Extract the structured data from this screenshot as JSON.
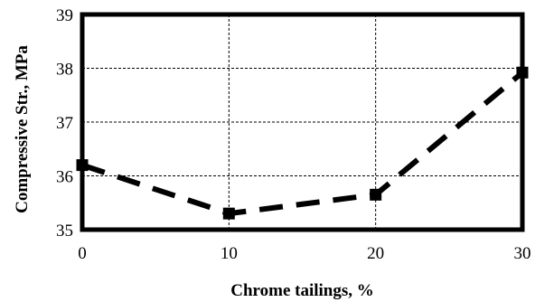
{
  "chart_data": {
    "type": "line",
    "title": "",
    "xlabel": "Chrome tailings, %",
    "ylabel": "Compressive Str., MPa",
    "x": [
      0,
      10,
      20,
      30
    ],
    "series": [
      {
        "values": [
          36.2,
          35.3,
          35.65,
          37.92
        ],
        "color": "#000000",
        "line_style": "dashed",
        "marker": "square"
      }
    ],
    "xlim": [
      0,
      30
    ],
    "ylim": [
      35,
      39
    ],
    "xticks": [
      0,
      10,
      20,
      30
    ],
    "yticks": [
      35,
      36,
      37,
      38,
      39
    ],
    "xtick_labels": [
      "0",
      "10",
      "20",
      "30"
    ],
    "ytick_labels": [
      "35",
      "36",
      "37",
      "38",
      "39"
    ],
    "grid": true,
    "legend": "none"
  }
}
